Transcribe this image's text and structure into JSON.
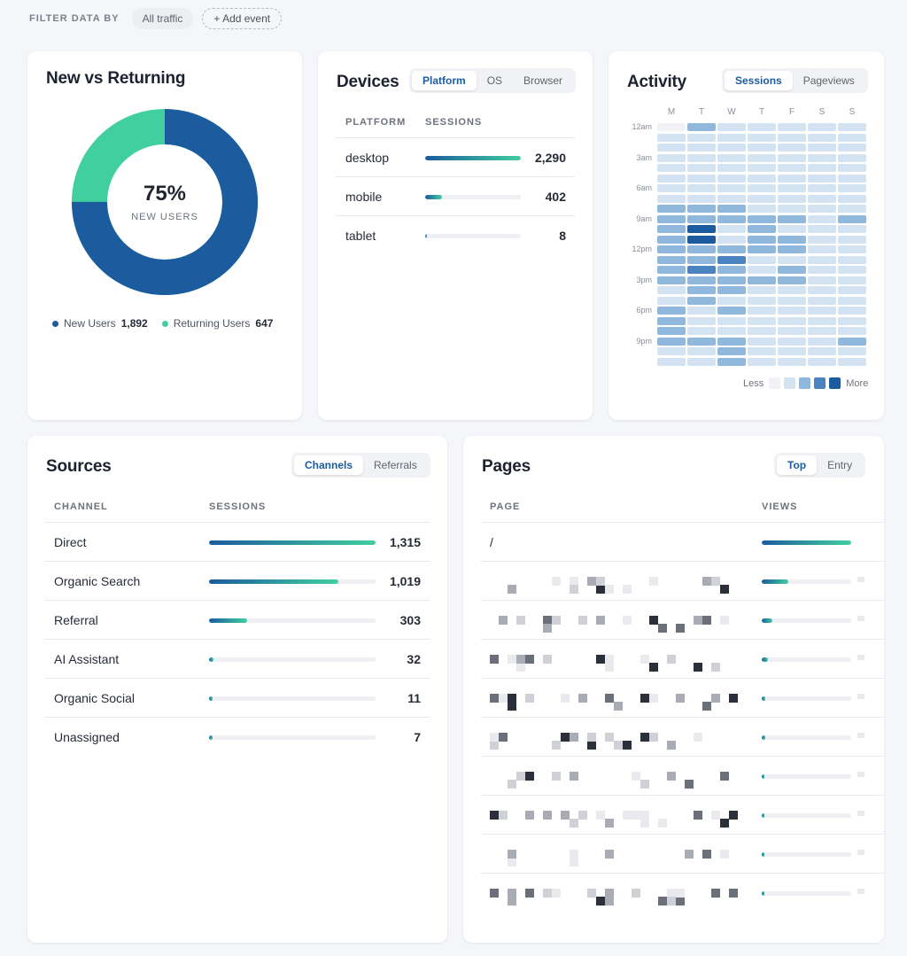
{
  "filter": {
    "label": "FILTER DATA BY",
    "all_traffic": "All traffic",
    "add_event": "+ Add event"
  },
  "new_vs_returning": {
    "title": "New vs Returning",
    "center_value": "75%",
    "center_label": "NEW USERS",
    "new_fraction": 0.75,
    "legend": [
      {
        "label": "New Users",
        "value": "1,892",
        "color": "#1b5b9e"
      },
      {
        "label": "Returning Users",
        "value": "647",
        "color": "#42cfa0"
      }
    ]
  },
  "devices": {
    "title": "Devices",
    "tabs": [
      "Platform",
      "OS",
      "Browser"
    ],
    "active_tab": 0,
    "col_label": "PLATFORM",
    "col_value": "SESSIONS",
    "rows": [
      {
        "label": "desktop",
        "value": "2,290",
        "fraction": 1.0
      },
      {
        "label": "mobile",
        "value": "402",
        "fraction": 0.18
      },
      {
        "label": "tablet",
        "value": "8",
        "fraction": 0.01
      }
    ]
  },
  "activity": {
    "title": "Activity",
    "tabs": [
      "Sessions",
      "Pageviews"
    ],
    "active_tab": 0,
    "days": [
      "M",
      "T",
      "W",
      "T",
      "F",
      "S",
      "S"
    ],
    "time_labels": [
      "12am",
      "3am",
      "6am",
      "9am",
      "12pm",
      "3pm",
      "6pm",
      "9pm"
    ],
    "legend_less": "Less",
    "legend_more": "More",
    "levels_colors": [
      "#f0f2f5",
      "#d3e3f1",
      "#90b8dc",
      "#4a83bf",
      "#1b5b9e"
    ],
    "grid": [
      [
        0,
        2,
        1,
        1,
        1,
        1,
        1
      ],
      [
        1,
        1,
        1,
        1,
        1,
        1,
        1
      ],
      [
        1,
        1,
        1,
        1,
        1,
        1,
        1
      ],
      [
        1,
        1,
        1,
        1,
        1,
        1,
        1
      ],
      [
        1,
        1,
        1,
        1,
        1,
        1,
        1
      ],
      [
        1,
        1,
        1,
        1,
        1,
        1,
        1
      ],
      [
        1,
        1,
        1,
        1,
        1,
        1,
        1
      ],
      [
        1,
        1,
        1,
        1,
        1,
        1,
        1
      ],
      [
        2,
        2,
        2,
        1,
        1,
        1,
        1
      ],
      [
        2,
        2,
        2,
        2,
        2,
        1,
        2
      ],
      [
        2,
        4,
        1,
        2,
        1,
        1,
        1
      ],
      [
        2,
        4,
        1,
        2,
        2,
        1,
        1
      ],
      [
        2,
        2,
        2,
        2,
        2,
        1,
        1
      ],
      [
        2,
        2,
        3,
        1,
        1,
        1,
        1
      ],
      [
        2,
        3,
        2,
        1,
        2,
        1,
        1
      ],
      [
        2,
        2,
        2,
        2,
        2,
        1,
        1
      ],
      [
        1,
        2,
        2,
        1,
        1,
        1,
        1
      ],
      [
        1,
        2,
        1,
        1,
        1,
        1,
        1
      ],
      [
        2,
        1,
        2,
        1,
        1,
        1,
        1
      ],
      [
        2,
        1,
        1,
        1,
        1,
        1,
        1
      ],
      [
        2,
        1,
        1,
        1,
        1,
        1,
        1
      ],
      [
        2,
        2,
        2,
        1,
        1,
        1,
        2
      ],
      [
        1,
        1,
        2,
        1,
        1,
        1,
        1
      ],
      [
        1,
        1,
        2,
        1,
        1,
        1,
        1
      ]
    ]
  },
  "sources": {
    "title": "Sources",
    "tabs": [
      "Channels",
      "Referrals"
    ],
    "active_tab": 0,
    "col_label": "CHANNEL",
    "col_value": "SESSIONS",
    "rows": [
      {
        "label": "Direct",
        "value": "1,315",
        "fraction": 1.0
      },
      {
        "label": "Organic Search",
        "value": "1,019",
        "fraction": 0.775
      },
      {
        "label": "Referral",
        "value": "303",
        "fraction": 0.23
      },
      {
        "label": "AI Assistant",
        "value": "32",
        "fraction": 0.024
      },
      {
        "label": "Organic Social",
        "value": "11",
        "fraction": 0.008
      },
      {
        "label": "Unassigned",
        "value": "7",
        "fraction": 0.005
      }
    ]
  },
  "pages": {
    "title": "Pages",
    "tabs": [
      "Top",
      "Entry"
    ],
    "active_tab": 0,
    "col_label": "PAGE",
    "col_value": "VIEWS",
    "rows": [
      {
        "label": "/",
        "fraction": 1.0
      },
      {
        "label": "",
        "fraction": 0.3
      },
      {
        "label": "",
        "fraction": 0.12
      },
      {
        "label": "",
        "fraction": 0.07
      },
      {
        "label": "",
        "fraction": 0.04
      },
      {
        "label": "",
        "fraction": 0.04
      },
      {
        "label": "",
        "fraction": 0.03
      },
      {
        "label": "",
        "fraction": 0.03
      },
      {
        "label": "",
        "fraction": 0.03
      },
      {
        "label": "",
        "fraction": 0.03
      }
    ]
  }
}
